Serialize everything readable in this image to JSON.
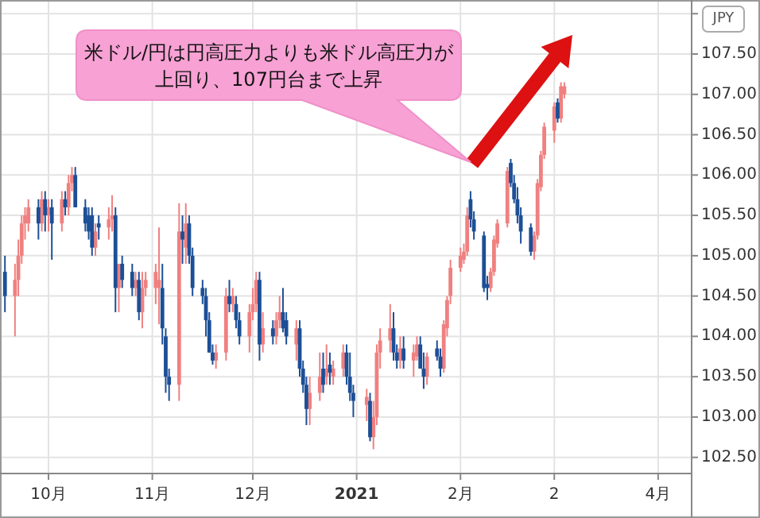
{
  "chart_data": {
    "type": "candlestick",
    "ylabel": "JPY",
    "annotations": [
      "米ドル/円は円高圧力よりも米ドル高圧力が上回り、107円台まで上昇"
    ],
    "xlim": [
      "2020-09-17",
      "2021-04-11"
    ],
    "xticks": [
      {
        "value": "2020-10-01",
        "label": "10月"
      },
      {
        "value": "2020-11-01",
        "label": "11月"
      },
      {
        "value": "2020-12-01",
        "label": "12月"
      },
      {
        "value": "2021-01-01",
        "label": "2021"
      },
      {
        "value": "2021-02-01",
        "label": "2月"
      },
      {
        "value": "2021-03-01",
        "label": "2"
      },
      {
        "value": "2021-04-01",
        "label": "4月"
      }
    ],
    "ylim": [
      102.3,
      108.15
    ],
    "yticks": [
      {
        "value": 102.5,
        "label": "102.50"
      },
      {
        "value": 103,
        "label": "103.00"
      },
      {
        "value": 103.5,
        "label": "103.50"
      },
      {
        "value": 104,
        "label": "104.00"
      },
      {
        "value": 104.5,
        "label": "104.50"
      },
      {
        "value": 105,
        "label": "105.00"
      },
      {
        "value": 105.5,
        "label": "105.50"
      },
      {
        "value": 106,
        "label": "106.00"
      },
      {
        "value": 106.5,
        "label": "106.50"
      },
      {
        "value": 107,
        "label": "107.00"
      },
      {
        "value": 107.5,
        "label": "107.50"
      },
      {
        "value": 108,
        "label": null
      }
    ],
    "grid": true,
    "series": [
      {
        "color": "#f08080",
        "x": [
          "2020-09-21",
          "2020-09-22",
          "2020-09-23",
          "2020-09-24",
          "2020-09-25",
          "2020-09-29",
          "2020-10-01",
          "2020-10-05",
          "2020-10-07",
          "2020-10-08",
          "2020-10-15",
          "2020-10-19",
          "2020-10-20",
          "2020-10-22",
          "2020-10-27",
          "2020-10-29",
          "2020-10-30",
          "2020-11-02",
          "2020-11-03",
          "2020-11-09",
          "2020-11-11",
          "2020-11-20",
          "2020-11-23",
          "2020-11-25",
          "2020-11-30",
          "2020-12-01",
          "2020-12-02",
          "2020-12-04",
          "2020-12-08",
          "2020-12-09",
          "2020-12-14",
          "2020-12-18",
          "2020-12-21",
          "2020-12-23",
          "2020-12-25",
          "2020-12-28",
          "2021-01-04",
          "2021-01-06",
          "2021-01-07",
          "2021-01-08",
          "2021-01-11",
          "2021-01-14",
          "2021-01-18",
          "2021-01-19",
          "2021-01-22",
          "2021-01-27",
          "2021-01-28",
          "2021-01-29",
          "2021-02-01",
          "2021-02-02",
          "2021-02-03",
          "2021-02-10",
          "2021-02-11",
          "2021-02-12",
          "2021-02-15",
          "2021-02-23",
          "2021-02-24",
          "2021-02-25",
          "2021-02-26",
          "2021-03-01",
          "2021-03-03",
          "2021-03-04"
        ],
        "ohlc": [
          [
            104.5,
            104.9,
            104.0,
            104.7
          ],
          [
            104.7,
            105.2,
            104.5,
            105.0
          ],
          [
            105.0,
            105.5,
            104.9,
            105.4
          ],
          [
            105.4,
            105.6,
            105.2,
            105.5
          ],
          [
            105.4,
            105.7,
            105.3,
            105.6
          ],
          [
            105.4,
            105.8,
            105.3,
            105.7
          ],
          [
            105.5,
            105.7,
            105.3,
            105.6
          ],
          [
            105.4,
            105.8,
            105.3,
            105.7
          ],
          [
            105.6,
            106.0,
            105.5,
            105.9
          ],
          [
            105.9,
            106.1,
            105.8,
            106.0
          ],
          [
            105.1,
            105.4,
            105.0,
            105.3
          ],
          [
            105.35,
            105.6,
            105.2,
            105.45
          ],
          [
            105.45,
            105.75,
            105.3,
            105.5
          ],
          [
            104.6,
            104.9,
            104.3,
            104.9
          ],
          [
            104.6,
            104.8,
            104.5,
            104.7
          ],
          [
            104.3,
            104.8,
            104.1,
            104.6
          ],
          [
            104.6,
            104.8,
            104.5,
            104.7
          ],
          [
            104.6,
            104.9,
            104.4,
            104.8
          ],
          [
            104.6,
            105.35,
            104.15,
            104.7
          ],
          [
            103.4,
            105.65,
            103.2,
            105.3
          ],
          [
            105.1,
            105.65,
            104.9,
            105.4
          ],
          [
            103.7,
            103.9,
            103.6,
            103.8
          ],
          [
            103.8,
            104.6,
            103.7,
            104.5
          ],
          [
            104.4,
            104.6,
            104.3,
            104.5
          ],
          [
            104.0,
            104.4,
            103.8,
            104.3
          ],
          [
            104.3,
            104.6,
            104.2,
            104.4
          ],
          [
            104.4,
            104.8,
            104.3,
            104.7
          ],
          [
            103.9,
            104.3,
            103.8,
            104.1
          ],
          [
            104.0,
            104.3,
            103.9,
            104.2
          ],
          [
            104.2,
            104.5,
            104.1,
            104.3
          ],
          [
            103.9,
            104.2,
            103.7,
            104.1
          ],
          [
            103.1,
            103.5,
            102.9,
            103.3
          ],
          [
            103.3,
            103.8,
            103.2,
            103.5
          ],
          [
            103.5,
            103.9,
            103.4,
            103.6
          ],
          [
            103.5,
            103.7,
            103.4,
            103.6
          ],
          [
            103.6,
            103.9,
            103.5,
            103.8
          ],
          [
            103.15,
            103.35,
            102.95,
            103.25
          ],
          [
            102.75,
            103.2,
            102.6,
            103.0
          ],
          [
            103.0,
            103.9,
            102.9,
            103.8
          ],
          [
            103.8,
            104.1,
            103.6,
            103.95
          ],
          [
            103.95,
            104.4,
            103.8,
            104.1
          ],
          [
            103.7,
            104.0,
            103.6,
            103.85
          ],
          [
            103.7,
            103.9,
            103.5,
            103.8
          ],
          [
            103.75,
            104.0,
            103.7,
            103.9
          ],
          [
            103.5,
            103.8,
            103.4,
            103.75
          ],
          [
            103.6,
            104.2,
            103.55,
            104.15
          ],
          [
            104.1,
            104.5,
            104.0,
            104.45
          ],
          [
            104.5,
            104.95,
            104.4,
            104.85
          ],
          [
            104.85,
            105.1,
            104.8,
            105.0
          ],
          [
            104.95,
            105.15,
            104.9,
            105.05
          ],
          [
            105.05,
            105.6,
            105.0,
            105.5
          ],
          [
            104.6,
            104.85,
            104.55,
            104.8
          ],
          [
            104.8,
            105.25,
            104.75,
            105.2
          ],
          [
            105.15,
            105.45,
            105.1,
            105.4
          ],
          [
            105.4,
            106.1,
            105.35,
            106.05
          ],
          [
            105.05,
            105.3,
            104.95,
            105.25
          ],
          [
            105.25,
            105.95,
            105.2,
            105.9
          ],
          [
            105.85,
            106.3,
            105.8,
            106.25
          ],
          [
            106.25,
            106.65,
            106.2,
            106.6
          ],
          [
            106.55,
            106.9,
            106.4,
            106.85
          ],
          [
            106.7,
            107.15,
            106.65,
            107.1
          ],
          [
            107.0,
            107.15,
            106.95,
            107.1
          ]
        ]
      },
      {
        "color": "#1c4f96",
        "x": [
          "2020-09-18",
          "2020-09-28",
          "2020-09-30",
          "2020-10-02",
          "2020-10-06",
          "2020-10-09",
          "2020-10-12",
          "2020-10-13",
          "2020-10-14",
          "2020-10-16",
          "2020-10-21",
          "2020-10-23",
          "2020-10-26",
          "2020-10-28",
          "2020-11-04",
          "2020-11-05",
          "2020-11-06",
          "2020-11-10",
          "2020-11-12",
          "2020-11-13",
          "2020-11-16",
          "2020-11-17",
          "2020-11-18",
          "2020-11-19",
          "2020-11-24",
          "2020-11-26",
          "2020-11-27",
          "2020-12-03",
          "2020-12-07",
          "2020-12-10",
          "2020-12-11",
          "2020-12-15",
          "2020-12-16",
          "2020-12-17",
          "2020-12-22",
          "2020-12-24",
          "2020-12-29",
          "2020-12-30",
          "2020-12-31",
          "2021-01-05",
          "2021-01-12",
          "2021-01-13",
          "2021-01-15",
          "2021-01-20",
          "2021-01-21",
          "2021-01-25",
          "2021-01-26",
          "2021-02-04",
          "2021-02-05",
          "2021-02-08",
          "2021-02-09",
          "2021-02-16",
          "2021-02-17",
          "2021-02-18",
          "2021-02-19",
          "2021-02-22",
          "2021-03-02"
        ],
        "ohlc": [
          [
            104.8,
            105.0,
            104.3,
            104.5
          ],
          [
            105.6,
            105.7,
            105.2,
            105.4
          ],
          [
            105.7,
            105.8,
            105.3,
            105.5
          ],
          [
            105.6,
            105.7,
            104.95,
            105.4
          ],
          [
            105.7,
            105.8,
            105.5,
            105.6
          ],
          [
            106.0,
            106.1,
            105.6,
            105.6
          ],
          [
            105.6,
            105.7,
            105.3,
            105.4
          ],
          [
            105.5,
            105.6,
            105.2,
            105.3
          ],
          [
            105.5,
            105.6,
            105.0,
            105.1
          ],
          [
            105.4,
            105.5,
            105.2,
            105.35
          ],
          [
            105.5,
            105.6,
            104.3,
            104.6
          ],
          [
            104.9,
            105.0,
            104.6,
            104.7
          ],
          [
            104.8,
            104.9,
            104.5,
            104.6
          ],
          [
            104.7,
            104.8,
            104.2,
            104.3
          ],
          [
            104.6,
            104.9,
            103.9,
            104.1
          ],
          [
            104.0,
            104.1,
            103.3,
            103.5
          ],
          [
            103.5,
            103.6,
            103.2,
            103.4
          ],
          [
            105.3,
            105.5,
            104.9,
            105.2
          ],
          [
            105.4,
            105.5,
            104.9,
            105.0
          ],
          [
            105.0,
            105.1,
            104.5,
            104.6
          ],
          [
            104.6,
            104.7,
            104.4,
            104.5
          ],
          [
            104.5,
            104.6,
            104.0,
            104.2
          ],
          [
            104.2,
            104.3,
            103.8,
            103.8
          ],
          [
            103.8,
            103.9,
            103.65,
            103.7
          ],
          [
            104.5,
            104.7,
            104.3,
            104.4
          ],
          [
            104.4,
            104.5,
            104.1,
            104.2
          ],
          [
            104.2,
            104.3,
            103.9,
            104.0
          ],
          [
            104.7,
            104.8,
            103.7,
            103.9
          ],
          [
            104.1,
            104.2,
            103.9,
            104.0
          ],
          [
            104.3,
            104.6,
            104.05,
            104.1
          ],
          [
            104.2,
            104.3,
            103.9,
            104.0
          ],
          [
            104.1,
            104.2,
            103.5,
            103.6
          ],
          [
            103.6,
            103.7,
            103.3,
            103.4
          ],
          [
            103.4,
            103.5,
            102.9,
            103.1
          ],
          [
            103.6,
            103.8,
            103.3,
            103.4
          ],
          [
            103.65,
            103.8,
            103.4,
            103.55
          ],
          [
            103.8,
            103.9,
            103.4,
            103.5
          ],
          [
            103.5,
            103.8,
            103.2,
            103.3
          ],
          [
            103.3,
            103.4,
            103.0,
            103.2
          ],
          [
            103.2,
            103.3,
            102.7,
            102.75
          ],
          [
            104.1,
            104.3,
            103.7,
            103.8
          ],
          [
            103.8,
            103.9,
            103.6,
            103.7
          ],
          [
            103.85,
            104.0,
            103.6,
            103.7
          ],
          [
            103.9,
            104.0,
            103.6,
            103.6
          ],
          [
            103.6,
            103.8,
            103.35,
            103.5
          ],
          [
            103.85,
            103.95,
            103.7,
            103.75
          ],
          [
            103.75,
            103.85,
            103.5,
            103.6
          ],
          [
            105.7,
            105.8,
            105.35,
            105.45
          ],
          [
            105.45,
            105.55,
            105.2,
            105.3
          ],
          [
            105.25,
            105.3,
            104.55,
            104.6
          ],
          [
            104.65,
            104.75,
            104.45,
            104.6
          ],
          [
            106.15,
            106.2,
            105.85,
            105.9
          ],
          [
            105.9,
            106.0,
            105.65,
            105.7
          ],
          [
            105.7,
            105.85,
            105.4,
            105.5
          ],
          [
            105.5,
            105.6,
            105.15,
            105.3
          ],
          [
            105.35,
            105.4,
            105.0,
            105.05
          ],
          [
            106.9,
            106.95,
            106.65,
            106.7
          ]
        ]
      }
    ]
  }
}
